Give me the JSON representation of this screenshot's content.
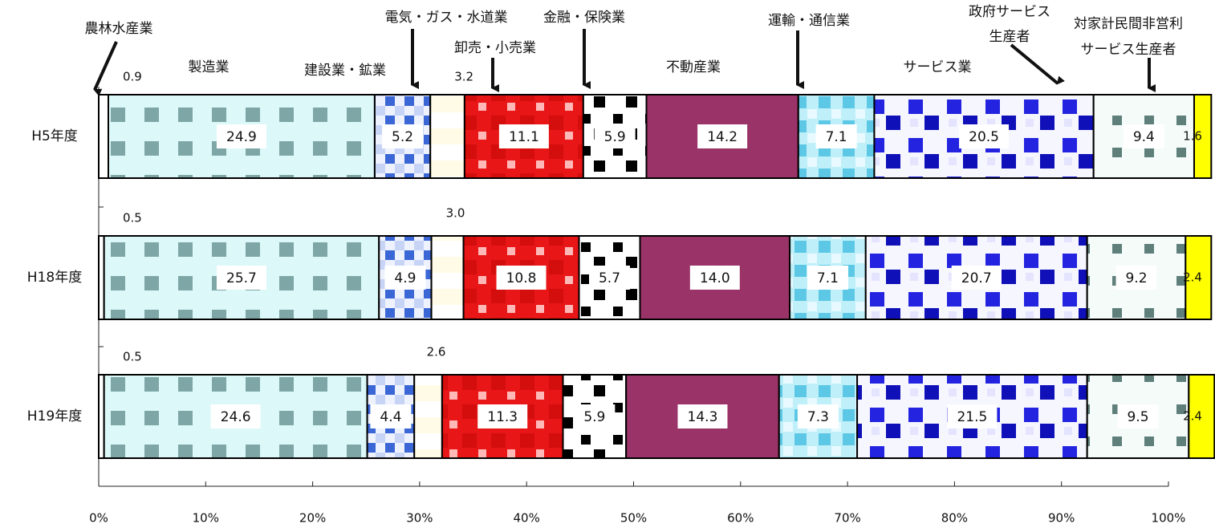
{
  "chart_data": {
    "type": "bar",
    "orientation": "horizontal",
    "stacked": "percent",
    "title": "",
    "xlabel": "",
    "ylabel": "",
    "xlim": [
      0,
      100
    ],
    "x_ticks": [
      "0%",
      "10%",
      "20%",
      "30%",
      "40%",
      "50%",
      "60%",
      "70%",
      "80%",
      "90%",
      "100%"
    ],
    "categories": [
      "H5年度",
      "H18年度",
      "H19年度"
    ],
    "series": [
      {
        "name": "農林水産業",
        "values": [
          0.9,
          0.5,
          0.5
        ],
        "label_display": [
          "0.9",
          "0.5",
          "0.5"
        ],
        "color": "#ffffff"
      },
      {
        "name": "製造業",
        "values": [
          24.9,
          25.7,
          24.6
        ],
        "label_display": [
          "24.9",
          "25.7",
          "24.6"
        ],
        "color": "#d8f6f6"
      },
      {
        "name": "建設業・鉱業",
        "values": [
          5.2,
          4.9,
          4.4
        ],
        "label_display": [
          "5.2",
          "4.9",
          "4.4"
        ],
        "color": "#4a78d8"
      },
      {
        "name": "電気・ガス・水道業",
        "values": [
          3.2,
          3.0,
          2.6
        ],
        "label_display": [
          "3.2",
          "3.0",
          "2.6"
        ],
        "color": "#fffbe0"
      },
      {
        "name": "卸売・小売業",
        "values": [
          11.1,
          10.8,
          11.3
        ],
        "label_display": [
          "11.1",
          "10.8",
          "11.3"
        ],
        "color": "#e81515"
      },
      {
        "name": "金融・保険業",
        "values": [
          5.9,
          5.7,
          5.9
        ],
        "label_display": [
          "5.9",
          "5.7",
          "5.9"
        ],
        "color": "#ffffff"
      },
      {
        "name": "不動産業",
        "values": [
          14.2,
          14.0,
          14.3
        ],
        "label_display": [
          "14.2",
          "14.0",
          "14.3"
        ],
        "color": "#9a3367"
      },
      {
        "name": "運輸・通信業",
        "values": [
          7.1,
          7.1,
          7.3
        ],
        "label_display": [
          "7.1",
          "7.1",
          "7.3"
        ],
        "color": "#9fe6f4"
      },
      {
        "name": "サービス業",
        "values": [
          20.5,
          20.7,
          21.5
        ],
        "label_display": [
          "20.5",
          "20.7",
          "21.5"
        ],
        "color": "#f4f4ff"
      },
      {
        "name": "政府サービス生産者",
        "values": [
          9.4,
          9.2,
          9.5
        ],
        "label_display": [
          "9.4",
          "9.2",
          "9.5"
        ],
        "color": "#f0faf8"
      },
      {
        "name": "対家計民間非営利サービス生産者",
        "values": [
          1.6,
          2.4,
          2.4
        ],
        "label_display": [
          "1.6",
          "2.4",
          "2.4"
        ],
        "color": "#ffff00"
      }
    ],
    "annotations": [
      {
        "text": "農林水産業",
        "series": 0,
        "arrow": true
      },
      {
        "text": "製造業",
        "series": 1,
        "arrow": false
      },
      {
        "text": "建設業・鉱業",
        "series": 2,
        "arrow": false
      },
      {
        "text": "電気・ガス・水道業",
        "series": 3,
        "arrow": true
      },
      {
        "text": "卸売・小売業",
        "series": 4,
        "arrow": true
      },
      {
        "text": "金融・保険業",
        "series": 5,
        "arrow": true
      },
      {
        "text": "不動産業",
        "series": 6,
        "arrow": false
      },
      {
        "text": "運輸・通信業",
        "series": 7,
        "arrow": true
      },
      {
        "text": "サービス業",
        "series": 8,
        "arrow": false
      },
      {
        "text": "政府サービス生産者",
        "series": 9,
        "arrow": true
      },
      {
        "text": "対家計民間非営利サービス生産者",
        "series": 10,
        "arrow": true
      }
    ],
    "legend": "none",
    "grid": false
  }
}
